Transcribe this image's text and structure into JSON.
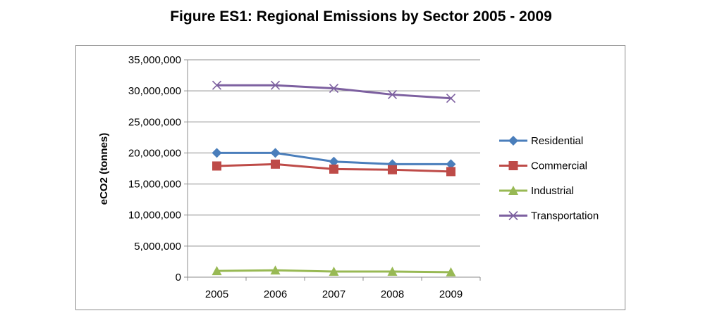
{
  "title": "Figure ES1:  Regional Emissions by Sector 2005 - 2009",
  "chart_data": {
    "type": "line",
    "categories": [
      "2005",
      "2006",
      "2007",
      "2008",
      "2009"
    ],
    "series": [
      {
        "name": "Residential",
        "color": "#4a7ebb",
        "marker": "diamond",
        "values": [
          20000000,
          20000000,
          18600000,
          18200000,
          18200000
        ]
      },
      {
        "name": "Commercial",
        "color": "#be4b48",
        "marker": "square",
        "values": [
          17900000,
          18200000,
          17400000,
          17300000,
          17000000
        ]
      },
      {
        "name": "Industrial",
        "color": "#98b954",
        "marker": "triangle",
        "values": [
          1000000,
          1100000,
          900000,
          900000,
          800000
        ]
      },
      {
        "name": "Transportation",
        "color": "#7d60a0",
        "marker": "x",
        "values": [
          30900000,
          30900000,
          30400000,
          29400000,
          28800000
        ]
      }
    ],
    "ylabel": "eCO2 (tonnes)",
    "xlabel": "",
    "ylim": [
      0,
      35000000
    ],
    "yticks": [
      "0",
      "5,000,000",
      "10,000,000",
      "15,000,000",
      "20,000,000",
      "25,000,000",
      "30,000,000",
      "35,000,000"
    ],
    "grid": true,
    "legend": "right"
  }
}
